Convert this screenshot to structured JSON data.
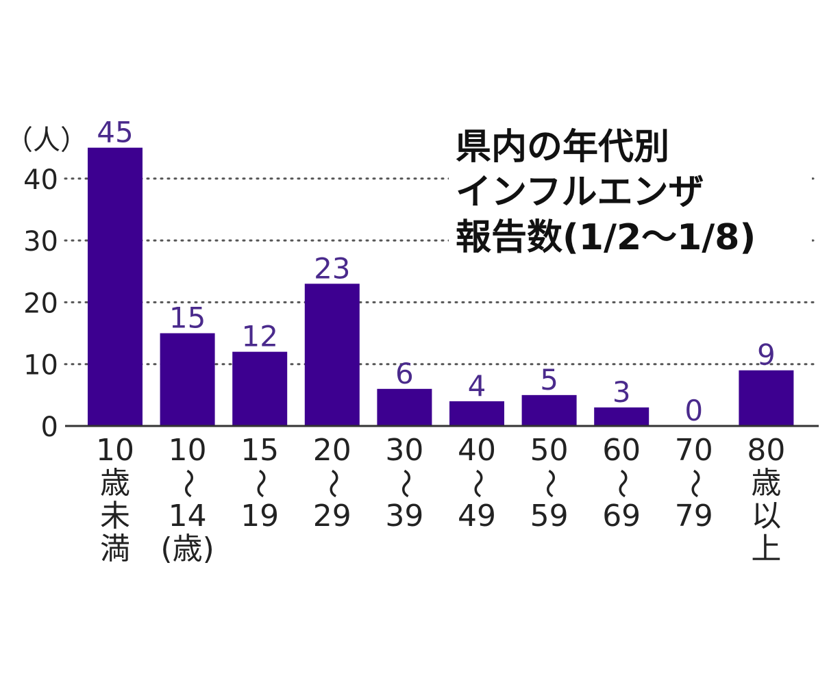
{
  "chart_data": {
    "type": "bar",
    "title": [
      "県内の年代別",
      "インフルエンザ",
      "報告数(1/2〜1/8)"
    ],
    "ylabel": "（人）",
    "xlabel": "",
    "ylim": [
      0,
      45
    ],
    "yticks": [
      0,
      10,
      20,
      30,
      40
    ],
    "grid": true,
    "categories": [
      [
        "10",
        "歳",
        "未",
        "満"
      ],
      [
        "10",
        "〜",
        "14",
        "(歳)"
      ],
      [
        "15",
        "〜",
        "19"
      ],
      [
        "20",
        "〜",
        "29"
      ],
      [
        "30",
        "〜",
        "39"
      ],
      [
        "40",
        "〜",
        "49"
      ],
      [
        "50",
        "〜",
        "59"
      ],
      [
        "60",
        "〜",
        "69"
      ],
      [
        "70",
        "〜",
        "79"
      ],
      [
        "80",
        "歳",
        "以",
        "上"
      ]
    ],
    "values": [
      45,
      15,
      12,
      23,
      6,
      4,
      5,
      3,
      0,
      9
    ],
    "colors": {
      "bar": "#3d0090",
      "label": "#4a2a8c",
      "grid": "#555555",
      "axis": "#333333"
    }
  }
}
